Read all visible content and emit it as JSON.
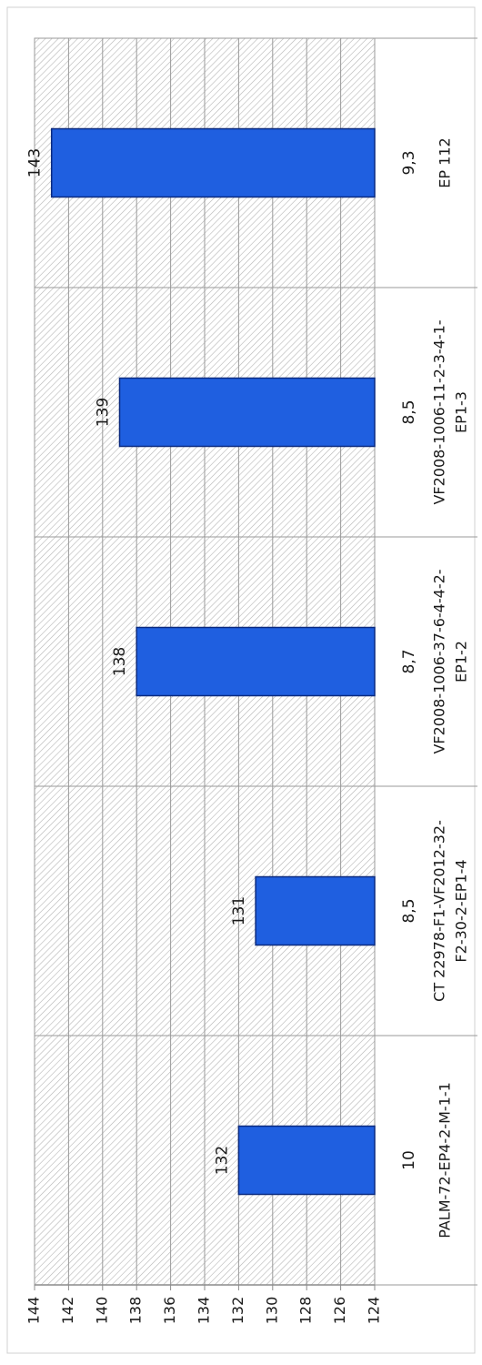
{
  "chart_data": {
    "type": "bar",
    "orientation": "rotated-90",
    "title": "",
    "xlabel": "",
    "ylabel": "",
    "ylim": [
      124,
      144
    ],
    "ytick_step": 2,
    "grid": true,
    "legend": "none",
    "categories": [
      {
        "line1": "PALM-72-EP4-2-M-1-1",
        "line2": "",
        "secondary": "10"
      },
      {
        "line1": "CT 22978-F1-VF2012-32-",
        "line2": "F2-30-2-EP1-4",
        "secondary": "8,5"
      },
      {
        "line1": "VF2008-1006-37-6-4-4-2-",
        "line2": "EP1-2",
        "secondary": "8,7"
      },
      {
        "line1": "VF2008-1006-11-2-3-4-1-",
        "line2": "EP1-3",
        "secondary": "8,5"
      },
      {
        "line1": "EP 112",
        "line2": "",
        "secondary": "9,3"
      }
    ],
    "values": [
      132,
      131,
      138,
      139,
      143
    ],
    "data_labels": [
      "132",
      "131",
      "138",
      "139",
      "143"
    ],
    "yticks": [
      "124",
      "126",
      "128",
      "130",
      "132",
      "134",
      "136",
      "138",
      "140",
      "142",
      "144"
    ],
    "colors": {
      "bar_fill": "#1F5FE0",
      "bar_stroke": "#0a2a80",
      "grid": "#9a9a9a",
      "hatch": "#b5b5b5",
      "axis": "#8c8c8c"
    }
  }
}
